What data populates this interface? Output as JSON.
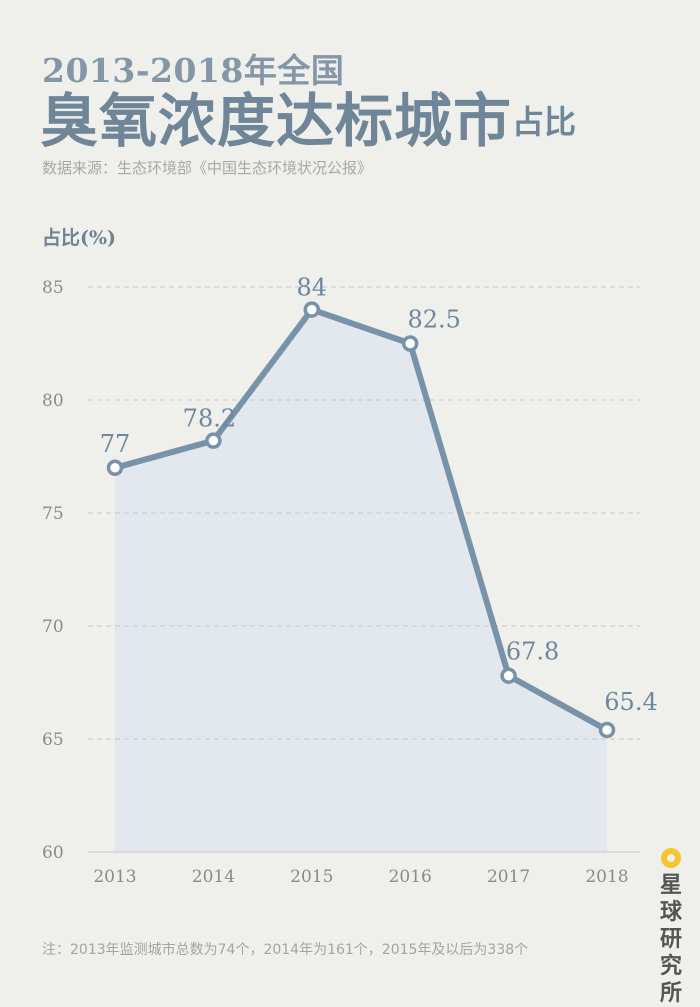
{
  "header": {
    "title_line1": "2013-2018年全国",
    "title_line2": "臭氧浓度达标城市",
    "title_suffix": "占比",
    "source": "数据来源：生态环境部《中国生态环境状况公报》"
  },
  "chart_data": {
    "type": "area",
    "title": "2013-2018年全国臭氧浓度达标城市占比",
    "ylabel": "占比(%)",
    "xlabel": "",
    "categories": [
      "2013",
      "2014",
      "2015",
      "2016",
      "2017",
      "2018"
    ],
    "values": [
      77,
      78.2,
      84,
      82.5,
      67.8,
      65.4
    ],
    "data_labels": [
      "77",
      "78.2",
      "84",
      "82.5",
      "67.8",
      "65.4"
    ],
    "ylim": [
      60,
      85
    ],
    "yticks": [
      "60",
      "65",
      "70",
      "75",
      "80",
      "85"
    ],
    "grid": true,
    "colors": {
      "line": "#7892aa",
      "fill": "#e2e8ed",
      "grid": "#c6c9cb",
      "label": "#6f889e",
      "tick": "#8a8a88"
    }
  },
  "footer": {
    "note": "注：2013年监测城市总数为74个，2014年为161个，2015年及以后为338个",
    "brand": "星球研究所"
  }
}
